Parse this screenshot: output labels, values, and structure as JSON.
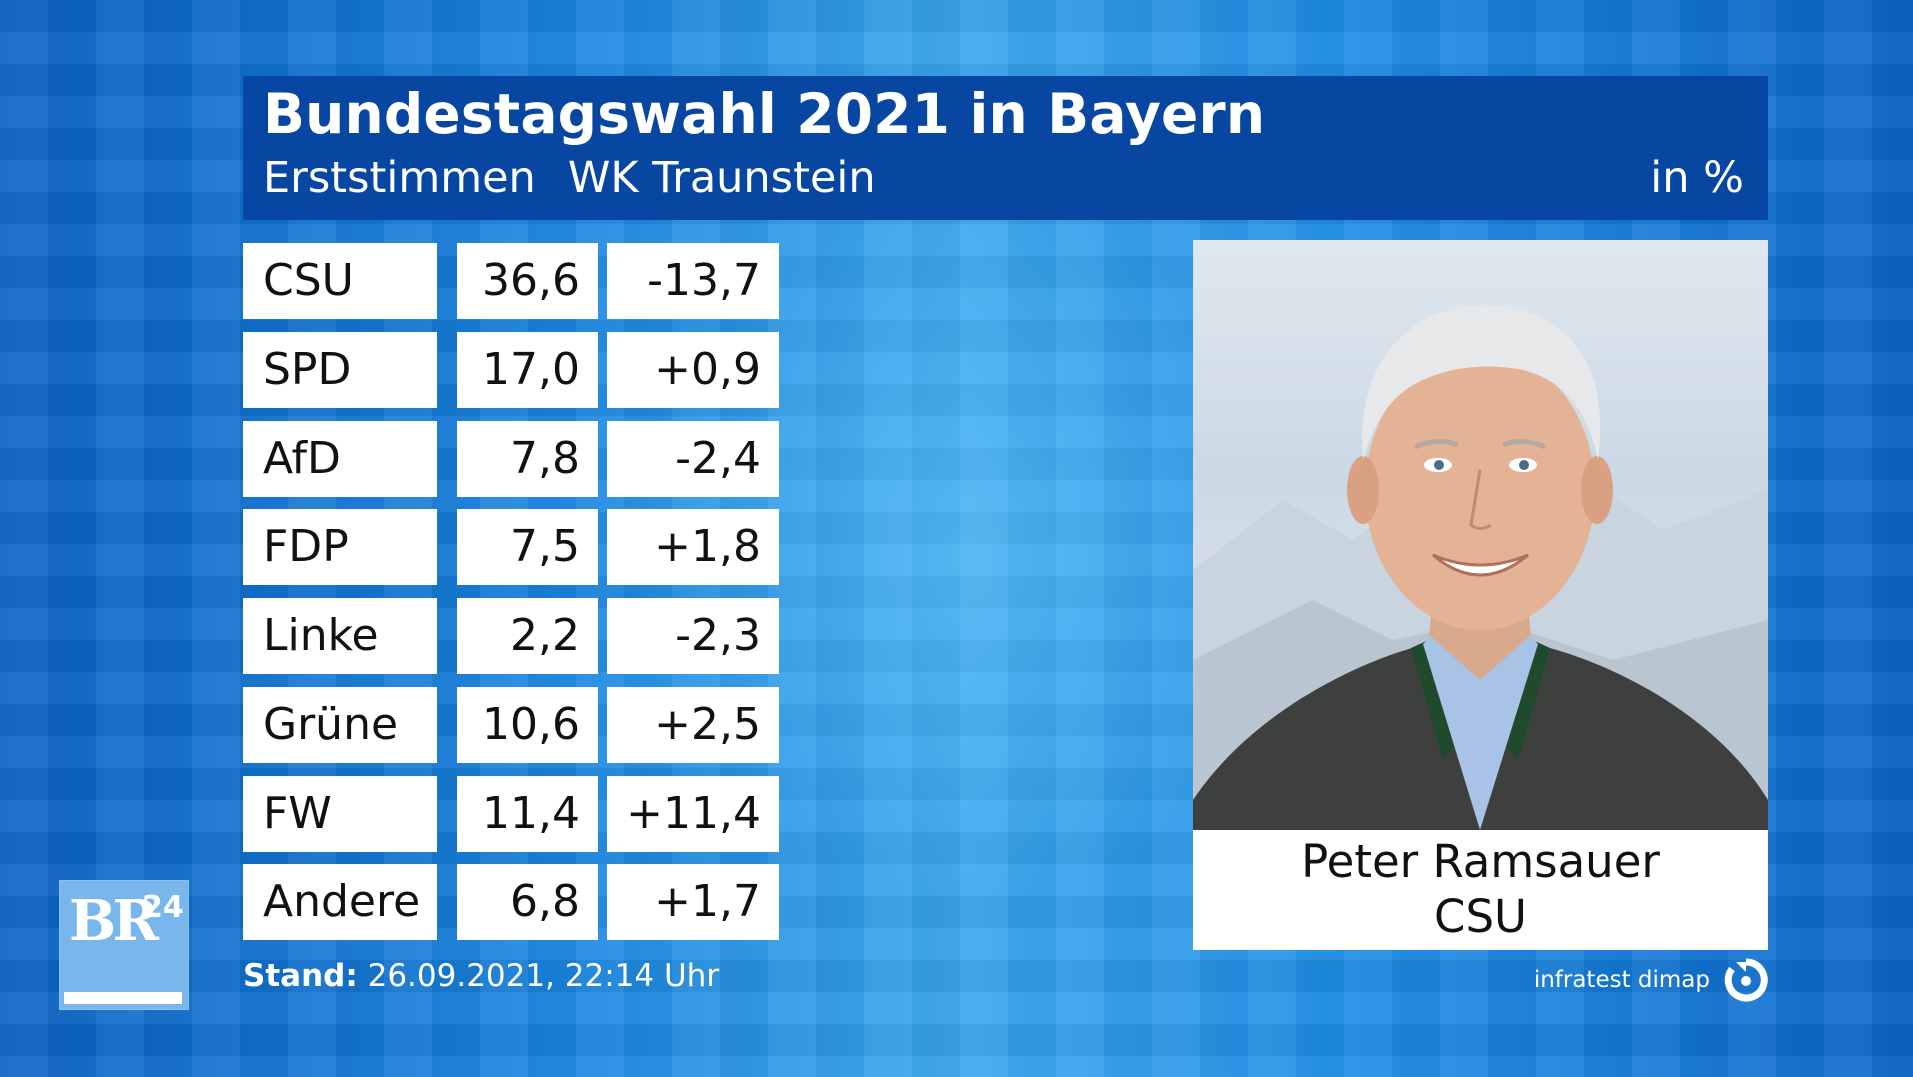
{
  "header": {
    "title": "Bundestagswahl 2021 in Bayern",
    "subtitle_vote": "Erststimmen",
    "subtitle_district": "WK Traunstein",
    "unit": "in %"
  },
  "results": [
    {
      "party": "CSU",
      "share": "36,6",
      "diff": "-13,7"
    },
    {
      "party": "SPD",
      "share": "17,0",
      "diff": "+0,9"
    },
    {
      "party": "AfD",
      "share": "7,8",
      "diff": "-2,4"
    },
    {
      "party": "FDP",
      "share": "7,5",
      "diff": "+1,8"
    },
    {
      "party": "Linke",
      "share": "2,2",
      "diff": "-2,3"
    },
    {
      "party": "Grüne",
      "share": "10,6",
      "diff": "+2,5"
    },
    {
      "party": "FW",
      "share": "11,4",
      "diff": "+11,4"
    },
    {
      "party": "Andere",
      "share": "6,8",
      "diff": "+1,7"
    }
  ],
  "candidate": {
    "name": "Peter Ramsauer",
    "party": "CSU"
  },
  "footer": {
    "stand_label": "Stand:",
    "stand_value": "26.09.2021, 22:14 Uhr",
    "source": "infratest dimap"
  },
  "logo": {
    "text": "BR",
    "superscript": "24"
  },
  "colors": {
    "header_bg": "#0747a1",
    "background": "#1a86e0",
    "logo_bg": "#79b6ec"
  }
}
